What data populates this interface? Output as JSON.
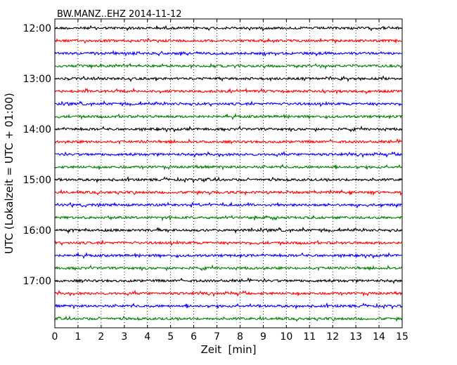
{
  "chart_data": {
    "type": "line",
    "title": "BW.MANZ..EHZ 2014-11-12",
    "xlabel": "Zeit  [min]",
    "ylabel": "UTC (Lokalzeit = UTC + 01:00)",
    "xlim": [
      0,
      15
    ],
    "x_ticks": [
      "0",
      "1",
      "2",
      "3",
      "4",
      "5",
      "6",
      "7",
      "8",
      "9",
      "10",
      "11",
      "12",
      "13",
      "14",
      "15"
    ],
    "y_ticks": [
      "12:00",
      "13:00",
      "14:00",
      "15:00",
      "16:00",
      "17:00"
    ],
    "grid": "vertical dotted at each minute",
    "trace_start_times": [
      "12:00",
      "12:15",
      "12:30",
      "12:45",
      "13:00",
      "13:15",
      "13:30",
      "13:45",
      "14:00",
      "14:15",
      "14:30",
      "14:45",
      "15:00",
      "15:15",
      "15:30",
      "15:45",
      "16:00",
      "16:15",
      "16:30",
      "16:45",
      "17:00",
      "17:15",
      "17:30",
      "17:45"
    ],
    "trace_colors": [
      "#000000",
      "#ff0000",
      "#0000ff",
      "#008000"
    ],
    "description_of_values": "continuous low-amplitude seismic noise, no distinct events"
  }
}
